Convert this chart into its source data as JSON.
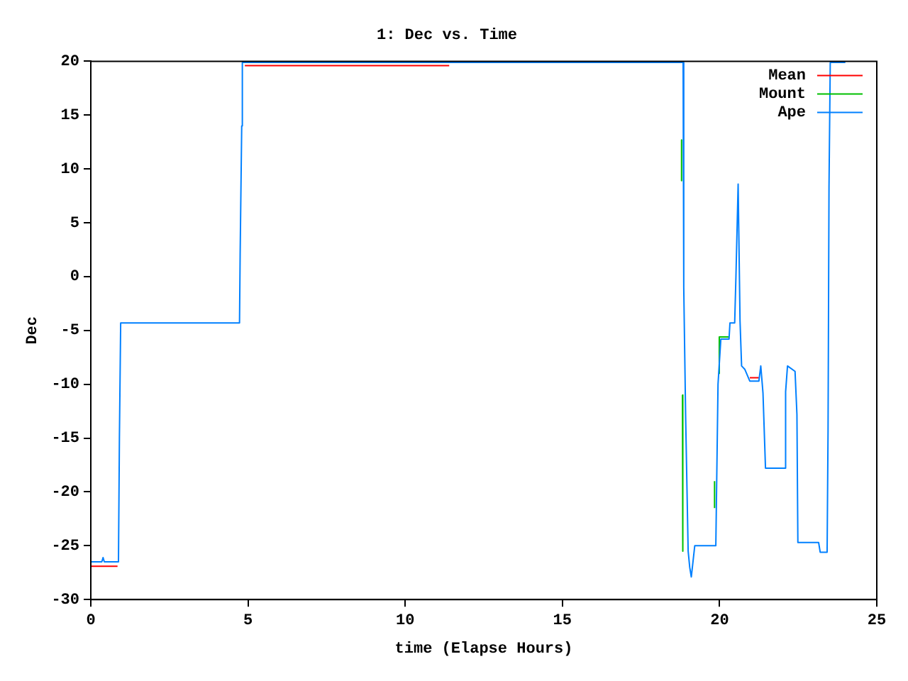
{
  "chart_data": {
    "type": "line",
    "title": "1: Dec vs. Time",
    "xlabel": "time (Elapse Hours)",
    "ylabel": "Dec",
    "xlim": [
      0,
      25
    ],
    "xticks": [
      0,
      5,
      10,
      15,
      20,
      25
    ],
    "ylim": [
      -30,
      20
    ],
    "yticks": [
      -30,
      -25,
      -20,
      -15,
      -10,
      -5,
      0,
      5,
      10,
      15,
      20
    ],
    "legend": "top right",
    "marker": "none",
    "line_style": "solid",
    "series": [
      {
        "name": "Mean",
        "color": "#ff0000",
        "x": [
          0,
          0.85,
          2,
          4.9,
          11.4,
          16,
          20.96,
          21.25
        ],
        "values": [
          -26.9,
          -26.9,
          null,
          19.6,
          19.6,
          null,
          -9.4,
          -9.4
        ]
      },
      {
        "name": "Mount",
        "color": "#00c000",
        "x": [
          18.79,
          18.79,
          18.8,
          18.82,
          18.83,
          19.3,
          19.84,
          19.84,
          19.92,
          19.97,
          19.99,
          20.3
        ],
        "values": [
          12.7,
          8.9,
          null,
          -11,
          -25.5,
          null,
          -21.5,
          -19,
          null,
          -9,
          -5.6,
          -5.6
        ]
      },
      {
        "name": "Ape",
        "color": "#0080ff",
        "x": [
          0,
          0.35,
          0.39,
          0.43,
          0.88,
          0.91,
          0.95,
          4.73,
          4.75,
          4.8,
          4.82,
          18.84,
          18.86,
          18.92,
          19.0,
          19.05,
          19.1,
          19.21,
          19.88,
          19.95,
          20.04,
          20.3,
          20.33,
          20.48,
          20.52,
          20.59,
          20.65,
          20.7,
          20.8,
          20.96,
          21.25,
          21.31,
          21.38,
          21.46,
          22.07,
          22.1,
          22.16,
          22.4,
          22.46,
          22.49,
          23.15,
          23.2,
          23.42,
          23.45,
          23.48,
          23.52,
          24
        ],
        "values": [
          -26.5,
          -26.5,
          -26.1,
          -26.5,
          -26.5,
          -15,
          -4.3,
          -4.3,
          2,
          14,
          19.9,
          19.9,
          -1,
          -13,
          -25.5,
          -27,
          -27.9,
          -25,
          -25,
          -10,
          -5.8,
          -5.8,
          -4.3,
          -4.3,
          0,
          8.6,
          -4.1,
          -8.3,
          -8.6,
          -9.7,
          -9.7,
          -8.3,
          -10.8,
          -17.8,
          -17.8,
          -10.7,
          -8.3,
          -8.8,
          -12.8,
          -24.7,
          -24.7,
          -25.6,
          -25.6,
          -14.3,
          8.3,
          19.9,
          19.9
        ]
      }
    ]
  }
}
